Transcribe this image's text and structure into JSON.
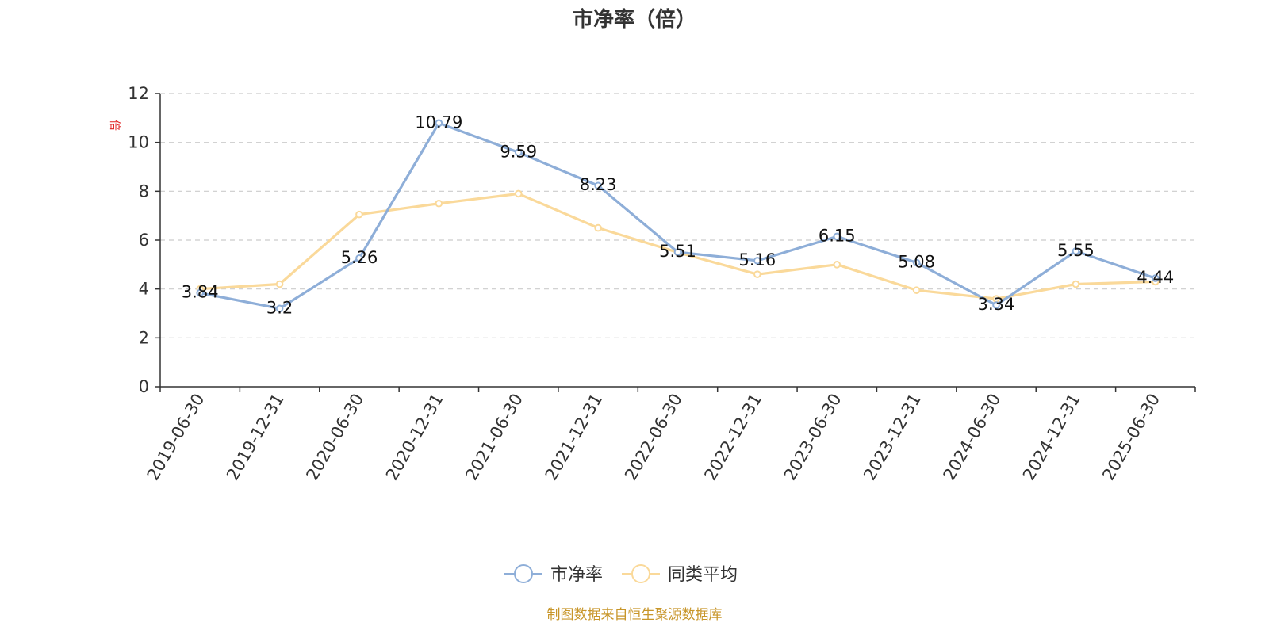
{
  "chart_data": {
    "type": "line",
    "title": "市净率（倍）",
    "ylabel": "倍",
    "ylim": [
      0,
      12
    ],
    "yticks": [
      0,
      2,
      4,
      6,
      8,
      10,
      12
    ],
    "grid": true,
    "legend_placement": "bottom-center",
    "categories": [
      "2019-06-30",
      "2019-12-31",
      "2020-06-30",
      "2020-12-31",
      "2021-06-30",
      "2021-12-31",
      "2022-06-30",
      "2022-12-31",
      "2023-06-30",
      "2023-12-31",
      "2024-06-30",
      "2024-12-31",
      "2025-06-30"
    ],
    "series": [
      {
        "name": "市净率",
        "color": "#8eaed8",
        "values": [
          3.84,
          3.2,
          5.26,
          10.79,
          9.59,
          8.23,
          5.51,
          5.16,
          6.15,
          5.08,
          3.34,
          5.55,
          4.44
        ],
        "labels": [
          "3.84",
          "3.2",
          "5.26",
          "10.79",
          "9.59",
          "8.23",
          "5.51",
          "5.16",
          "6.15",
          "5.08",
          "3.34",
          "5.55",
          "4.44"
        ]
      },
      {
        "name": "同类平均",
        "color": "#fad99a",
        "values": [
          4.0,
          4.2,
          7.05,
          7.5,
          7.9,
          6.5,
          5.5,
          4.6,
          5.0,
          3.95,
          3.6,
          4.2,
          4.3
        ]
      }
    ]
  },
  "source_text": "制图数据来自恒生聚源数据库",
  "colors": {
    "axis": "#333333",
    "grid": "#cccccc",
    "unit": "#e02020",
    "source": "#c8962a"
  }
}
